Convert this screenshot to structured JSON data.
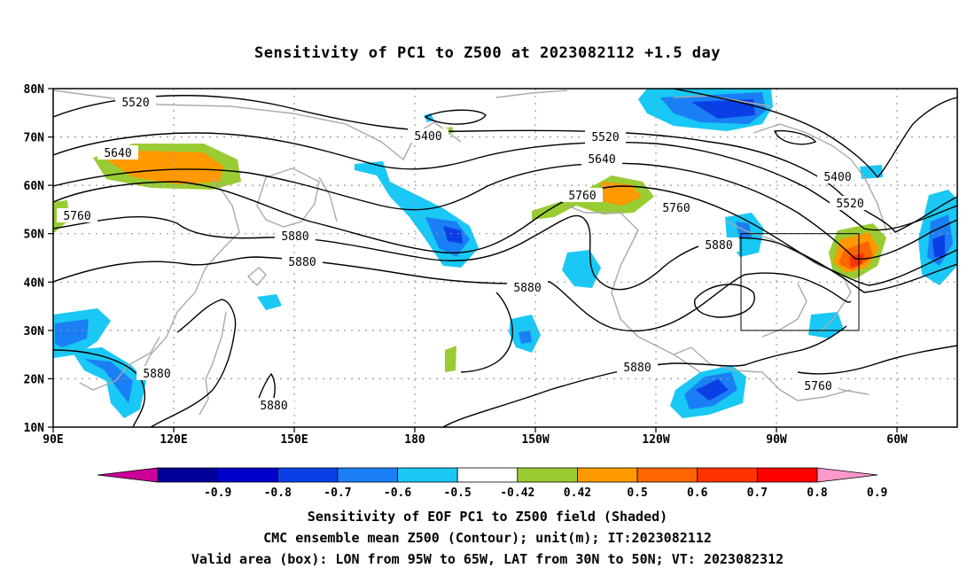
{
  "title": "Sensitivity of PC1 to Z500 at 2023082112 +1.5 day",
  "map": {
    "lat_labels": [
      "80N",
      "70N",
      "60N",
      "50N",
      "40N",
      "30N",
      "20N",
      "10N"
    ],
    "lon_labels": [
      "90E",
      "120E",
      "150E",
      "180",
      "150W",
      "120W",
      "90W",
      "60W"
    ],
    "valid_box": {
      "lon_from": -95,
      "lon_to": -65,
      "lat_from": 30,
      "lat_to": 50
    },
    "contour_labels": [
      "5520",
      "5400",
      "5520",
      "5640",
      "5640",
      "5760",
      "5760",
      "5760",
      "5880",
      "5880",
      "5400",
      "5520",
      "5880",
      "5760",
      "5880",
      "5880",
      "5880",
      "5880"
    ]
  },
  "colorbar": {
    "labels": [
      "-0.9",
      "-0.8",
      "-0.7",
      "-0.6",
      "-0.5",
      "-0.42",
      "0.42",
      "0.5",
      "0.6",
      "0.7",
      "0.8",
      "0.9"
    ],
    "colors": [
      "#cc0099",
      "#000099",
      "#0000cc",
      "#0a3fe6",
      "#1a7ff5",
      "#19c8f5",
      "#ffffff",
      "#99cc33",
      "#ff9900",
      "#ff6600",
      "#ff3300",
      "#ff0000",
      "#ff99cc"
    ]
  },
  "captions": {
    "line1": "Sensitivity of EOF PC1 to Z500 field (Shaded)",
    "line2": "CMC ensemble mean Z500 (Contour); unit(m); IT:2023082112",
    "line3": "Valid area (box): LON from 95W to 65W, LAT from 30N to 50N; VT: 2023082312"
  }
}
